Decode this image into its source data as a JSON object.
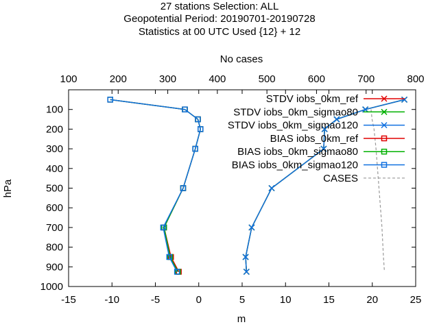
{
  "chart_data": {
    "type": "line",
    "title_lines": [
      "27 stations Selection: ALL",
      "Geopotential  Period: 20190701-20190728",
      "Statistics at 00 UTC  Used {12} + 12"
    ],
    "xlabel": "m",
    "ylabel": "hPa",
    "x2label": "No cases",
    "xlim": [
      -15,
      25
    ],
    "ylim": [
      1000,
      0
    ],
    "x2lim": [
      100,
      800
    ],
    "x_ticks": [
      "-15",
      "-10",
      "-5",
      "0",
      "5",
      "10",
      "15",
      "20",
      "25"
    ],
    "x2_ticks": [
      "100",
      "200",
      "300",
      "400",
      "500",
      "600",
      "700",
      "800"
    ],
    "y_ticks": [
      "100",
      "200",
      "300",
      "400",
      "500",
      "600",
      "700",
      "800",
      "900",
      "1000"
    ],
    "legend_position": "top-right",
    "levels": [
      50,
      100,
      150,
      200,
      300,
      500,
      700,
      850,
      925
    ],
    "series": [
      {
        "name": "STDV iobs_0km_ref",
        "color": "#e00000",
        "marker": "x",
        "x": [
          23.7,
          19.2,
          15.9,
          14.5,
          14.4,
          8.4,
          6.1,
          5.4,
          5.5
        ]
      },
      {
        "name": "STDV iobs_0km_sigmao80",
        "color": "#00b000",
        "marker": "x",
        "x": [
          23.7,
          19.2,
          15.9,
          14.5,
          14.4,
          8.4,
          6.1,
          5.4,
          5.5
        ]
      },
      {
        "name": "STDV iobs_0km_sigmao120",
        "color": "#1070e0",
        "marker": "x",
        "x": [
          23.7,
          19.2,
          15.9,
          14.5,
          14.4,
          8.4,
          6.1,
          5.4,
          5.5
        ]
      },
      {
        "name": "BIAS iobs_0km_ref",
        "color": "#e00000",
        "marker": "square",
        "x": [
          -10.2,
          -1.6,
          -0.1,
          0.2,
          -0.4,
          -1.8,
          -4.0,
          -3.2,
          -2.3
        ]
      },
      {
        "name": "BIAS iobs_0km_sigmao80",
        "color": "#00b000",
        "marker": "square",
        "x": [
          -10.2,
          -1.6,
          -0.1,
          0.2,
          -0.4,
          -1.8,
          -4.0,
          -3.3,
          -2.4
        ]
      },
      {
        "name": "BIAS iobs_0km_sigmao120",
        "color": "#1070e0",
        "marker": "square",
        "x": [
          -10.2,
          -1.6,
          -0.1,
          0.2,
          -0.4,
          -1.8,
          -4.1,
          -3.4,
          -2.5
        ]
      }
    ],
    "cases": {
      "name": "CASES",
      "color": "#999999",
      "levels": [
        100,
        150,
        200,
        300,
        500,
        700,
        850,
        925
      ],
      "values": [
        710,
        712,
        716,
        720,
        726,
        732,
        735,
        737
      ]
    }
  }
}
